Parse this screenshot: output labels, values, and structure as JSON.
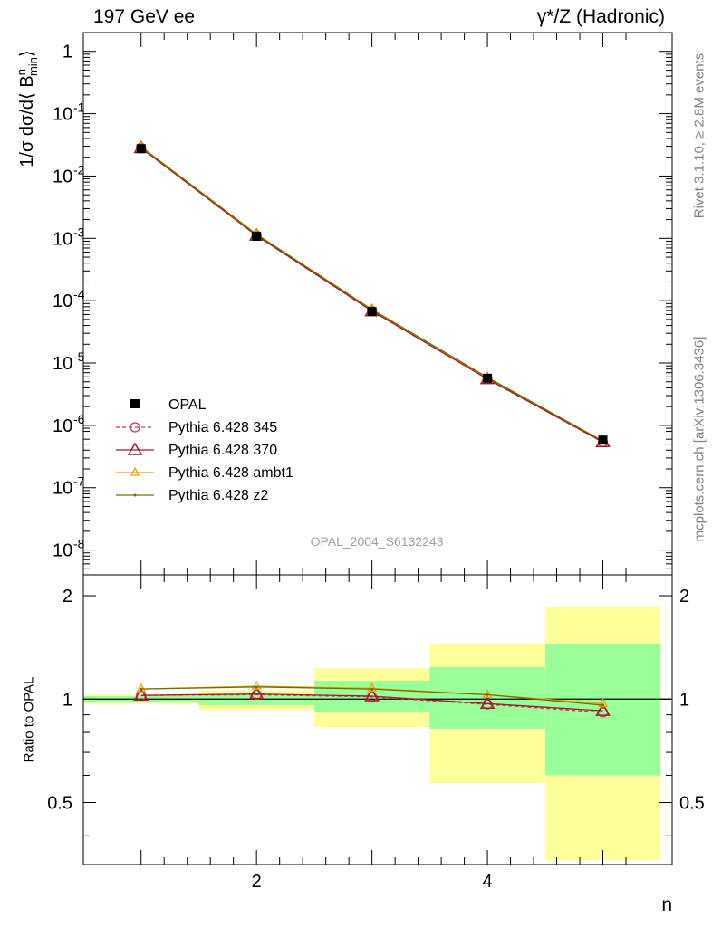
{
  "header": {
    "left": "197 GeV ee",
    "right": "γ*/Z (Hadronic)"
  },
  "side": {
    "rivet": "Rivet 3.1.10, ≥ 2.8M events",
    "mcplots": "mcplots.cern.ch [arXiv:1306.3436]"
  },
  "analysis": "OPAL_2004_S6132243",
  "chart_data": [
    {
      "type": "line",
      "ylabel": "1/σ dσ/d⟨ B",
      "ylabel_sup": "n",
      "ylabel_sub": "min",
      "ylabel_end": "⟩",
      "yscale": "log",
      "ylim": [
        4e-09,
        2
      ],
      "xlim": [
        0.5,
        5.6
      ],
      "ytick_labels": [
        "1",
        "10",
        "10",
        "10",
        "10",
        "10",
        "10",
        "10",
        "10"
      ],
      "ytick_exps": [
        "",
        "-1",
        "-2",
        "-3",
        "-4",
        "-5",
        "-6",
        "-7",
        "-8"
      ],
      "x": [
        1,
        2,
        3,
        4,
        5
      ],
      "data_series": {
        "name": "OPAL",
        "values": [
          0.0275,
          0.00108,
          6.7e-05,
          5.7e-06,
          5.8e-07
        ]
      },
      "series": [
        {
          "name": "Pythia 6.428 345",
          "color": "#c8385a",
          "values": [
            0.0282,
            0.00111,
            6.82e-05,
            5.53e-06,
            5.35e-07
          ]
        },
        {
          "name": "Pythia 6.428 370",
          "color": "#9e1a30",
          "values": [
            0.0282,
            0.00111,
            6.83e-05,
            5.55e-06,
            5.4e-07
          ]
        },
        {
          "name": "Pythia 6.428 ambt1",
          "color": "#f0a000",
          "values": [
            0.0294,
            0.001165,
            7.24e-05,
            5.9e-06,
            5.6e-07
          ]
        },
        {
          "name": "Pythia 6.428 z2",
          "color": "#707000",
          "values": [
            0.0294,
            0.00116,
            7.22e-05,
            5.88e-06,
            5.58e-07
          ]
        }
      ]
    },
    {
      "type": "line",
      "ylabel": "Ratio to OPAL",
      "xlabel": "n",
      "yscale": "log",
      "ylim": [
        0.33,
        2.3
      ],
      "xlim": [
        0.5,
        5.6
      ],
      "ytick_labels": [
        "0.5",
        "1",
        "2"
      ],
      "xtick_labels": [
        "2",
        "4"
      ],
      "bands": [
        {
          "xlo": 0.5,
          "xhi": 1.5,
          "y_lo": 0.97,
          "y_hi": 1.03,
          "g_lo": 0.98,
          "g_hi": 1.02
        },
        {
          "xlo": 1.5,
          "xhi": 2.5,
          "y_lo": 0.93,
          "y_hi": 1.06,
          "g_lo": 0.96,
          "g_hi": 1.03
        },
        {
          "xlo": 2.5,
          "xhi": 3.5,
          "y_lo": 0.83,
          "y_hi": 1.23,
          "g_lo": 0.92,
          "g_hi": 1.13
        },
        {
          "xlo": 3.5,
          "xhi": 4.5,
          "y_lo": 0.57,
          "y_hi": 1.45,
          "g_lo": 0.82,
          "g_hi": 1.24
        },
        {
          "xlo": 4.5,
          "xhi": 5.5,
          "y_lo": 0.34,
          "y_hi": 1.85,
          "g_lo": 0.6,
          "g_hi": 1.45
        }
      ],
      "series": [
        {
          "name": "Pythia 6.428 345",
          "values": [
            1.025,
            1.03,
            1.015,
            0.965,
            0.915
          ]
        },
        {
          "name": "Pythia 6.428 370",
          "values": [
            1.025,
            1.035,
            1.02,
            0.97,
            0.925
          ]
        },
        {
          "name": "Pythia 6.428 ambt1",
          "values": [
            1.07,
            1.09,
            1.075,
            1.03,
            0.97
          ]
        },
        {
          "name": "Pythia 6.428 z2",
          "values": [
            1.07,
            1.085,
            1.07,
            1.03,
            0.96
          ]
        }
      ]
    }
  ]
}
